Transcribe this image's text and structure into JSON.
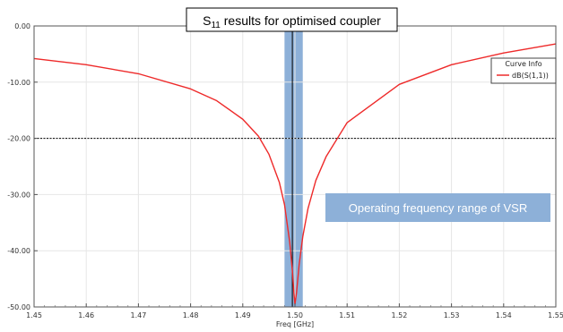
{
  "chart_data": {
    "type": "line",
    "title": {
      "prefix": "S",
      "subscript": "11",
      "suffix": " results for optimised coupler"
    },
    "xlabel": "Freq [GHz]",
    "ylabel": "",
    "xlim": [
      1.45,
      1.55
    ],
    "ylim": [
      -50,
      0
    ],
    "x_ticks": [
      "1.45",
      "1.46",
      "1.47",
      "1.48",
      "1.49",
      "1.50",
      "1.51",
      "1.52",
      "1.53",
      "1.54",
      "1.55"
    ],
    "y_ticks": [
      "0.00",
      "-10.00",
      "-20.00",
      "-30.00",
      "-40.00",
      "-50.00"
    ],
    "grid": true,
    "legend": {
      "title": "Curve Info",
      "position": "top-right"
    },
    "series": [
      {
        "name": "dB(S(1,1))",
        "color": "#ee2a2a",
        "x": [
          1.45,
          1.46,
          1.47,
          1.48,
          1.485,
          1.49,
          1.493,
          1.495,
          1.497,
          1.498,
          1.499,
          1.4995,
          1.4998,
          1.5,
          1.5003,
          1.5008,
          1.5015,
          1.5025,
          1.504,
          1.506,
          1.51,
          1.52,
          1.53,
          1.54,
          1.55
        ],
        "y": [
          -5.8,
          -6.9,
          -8.5,
          -11.2,
          -13.3,
          -16.6,
          -19.6,
          -22.8,
          -27.8,
          -31.8,
          -38.5,
          -43.5,
          -47.5,
          -49.5,
          -47.5,
          -42.5,
          -37.5,
          -32.5,
          -27.5,
          -23.2,
          -17.2,
          -10.4,
          -6.9,
          -4.8,
          -3.2
        ]
      }
    ],
    "reference_line": {
      "y": -20,
      "style": "dashed",
      "color": "#000000"
    },
    "highlight_band": {
      "x_range": [
        1.498,
        1.5015
      ],
      "color": "#8db0d8"
    },
    "center_line": {
      "x": 1.4995,
      "color": "#000000"
    },
    "annotation": {
      "text": "Operating frequency range of VSR",
      "color": "#8db0d8"
    }
  }
}
